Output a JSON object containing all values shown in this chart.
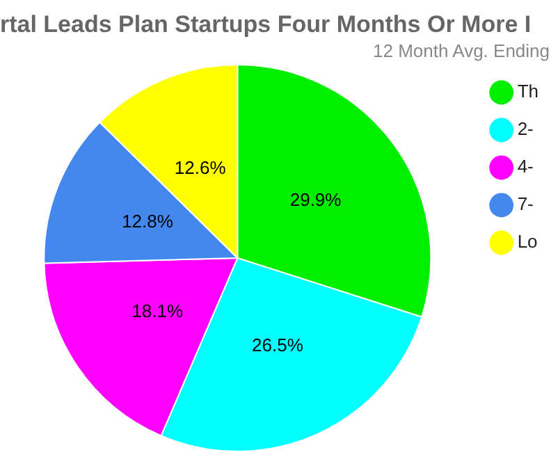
{
  "chart_data": {
    "type": "pie",
    "title": "rtal Leads Plan Startups Four Months Or More I",
    "subtitle": "12 Month Avg. Ending",
    "categories": [
      "Th",
      "2-",
      "4-",
      "7-",
      "Lo"
    ],
    "values": [
      29.9,
      26.5,
      18.1,
      12.8,
      12.6
    ],
    "colors": [
      "#00ee00",
      "#00ffff",
      "#ff00ff",
      "#4488ee",
      "#ffff00"
    ],
    "value_labels": [
      "29.9%",
      "26.5%",
      "18.1%",
      "12.8%",
      "12.6%"
    ],
    "legend": "right"
  }
}
